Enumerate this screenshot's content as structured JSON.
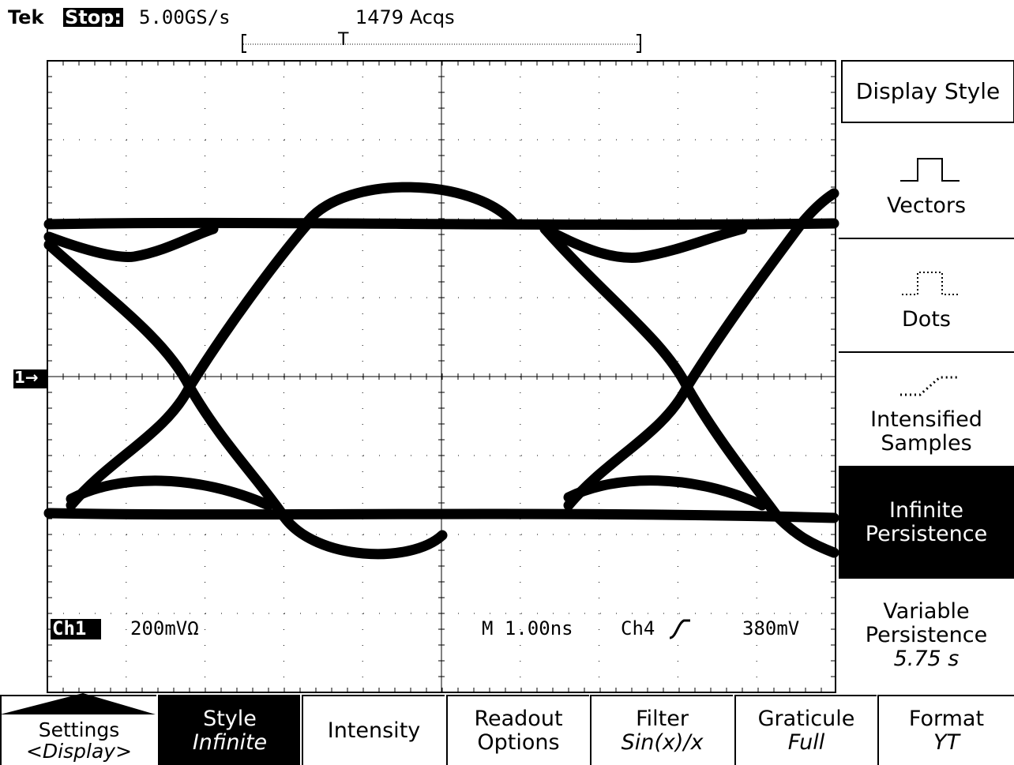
{
  "header": {
    "brand": "Tek",
    "state": "Stop:",
    "sample_rate": "5.00GS/s",
    "acquisitions": "1479 Acqs"
  },
  "trigger_marker": "T",
  "channel_marker": "1→",
  "readout": {
    "channel": "Ch1",
    "scale": "200mVΩ",
    "timebase": "M 1.00ns",
    "trigger_source": "Ch4",
    "trigger_level": "380mV"
  },
  "side_menu": {
    "title": "Display Style",
    "items": [
      {
        "label": [
          "Vectors"
        ]
      },
      {
        "label": [
          "Dots"
        ]
      },
      {
        "label": [
          "Intensified",
          "Samples"
        ]
      },
      {
        "label": [
          "Infinite",
          "Persistence"
        ]
      },
      {
        "label": [
          "Variable",
          "Persistence"
        ],
        "value": "5.75 s"
      }
    ]
  },
  "bottom_menu": [
    {
      "label": [
        "Settings"
      ],
      "value": "<Display>"
    },
    {
      "label": [
        "Style"
      ],
      "value": "Infinite"
    },
    {
      "label": [
        "Intensity"
      ]
    },
    {
      "label": [
        "Readout",
        "Options"
      ]
    },
    {
      "label": [
        "Filter"
      ],
      "value": "Sin(x)/x"
    },
    {
      "label": [
        "Graticule"
      ],
      "value": "Full"
    },
    {
      "label": [
        "Format"
      ],
      "value": "YT"
    }
  ]
}
